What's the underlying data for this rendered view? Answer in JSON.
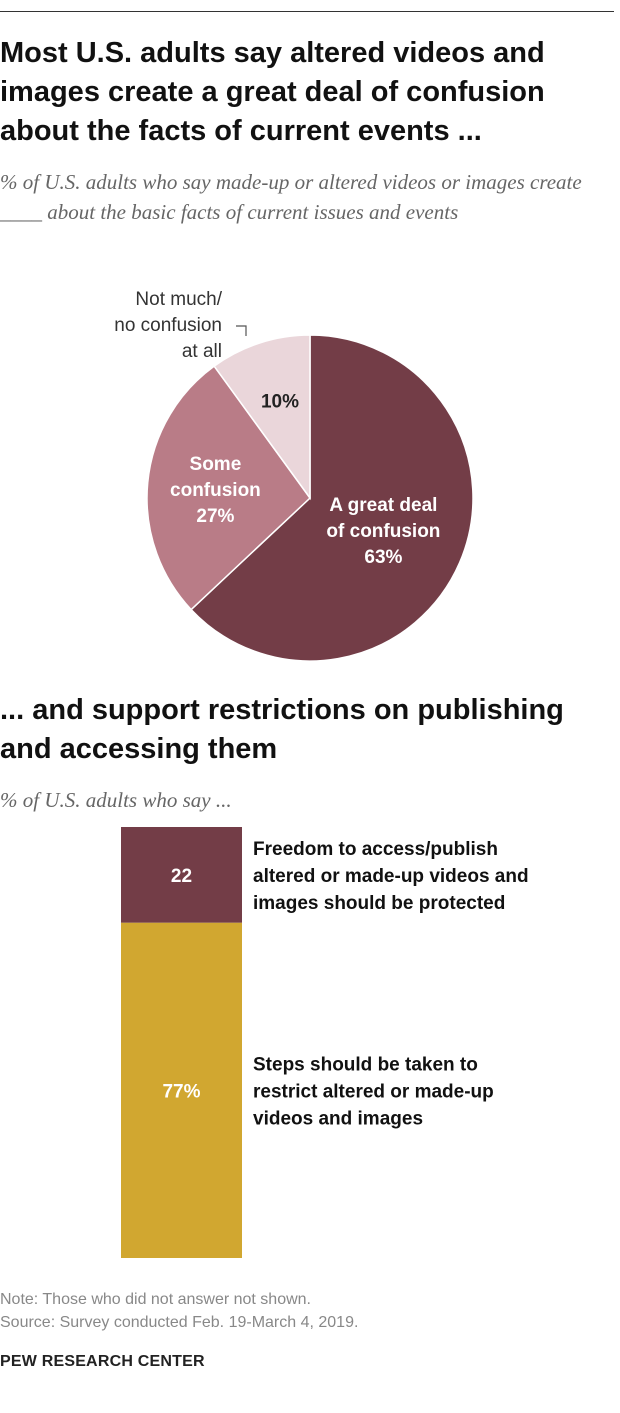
{
  "title": "Most U.S. adults say altered videos and images create a great deal of confusion about the facts of current events ...",
  "subtitle": "% of U.S. adults who say made-up or altered videos or images create ____ about the basic facts of current issues and events",
  "chart_data": [
    {
      "type": "pie",
      "slices": [
        {
          "label_lines": [
            "A great deal",
            "of confusion"
          ],
          "value": 63,
          "value_label": "63%",
          "color": "#733D47"
        },
        {
          "label_lines": [
            "Some",
            "confusion"
          ],
          "value": 27,
          "value_label": "27%",
          "color": "#B97C87"
        },
        {
          "label_lines": [
            "Not much/",
            "no confusion",
            "at all"
          ],
          "value": 10,
          "value_label": "10%",
          "color": "#EAD6DA"
        }
      ]
    },
    {
      "type": "bar",
      "title": "... and support restrictions on publishing and accessing them",
      "subtitle": "% of U.S. adults who say ...",
      "segments": [
        {
          "label_lines": [
            "Freedom to access/publish",
            "altered or made-up videos and",
            "images should be protected"
          ],
          "value": 22,
          "value_label": "22",
          "color": "#733D47"
        },
        {
          "label_lines": [
            "Steps should be taken to",
            "restrict altered or made-up",
            "videos and images"
          ],
          "value": 77,
          "value_label": "77%",
          "color": "#D1A730"
        }
      ]
    }
  ],
  "notes": [
    "Note: Those who did not answer not shown.",
    "Source: Survey conducted Feb. 19-March 4, 2019."
  ],
  "footer": "PEW RESEARCH CENTER"
}
